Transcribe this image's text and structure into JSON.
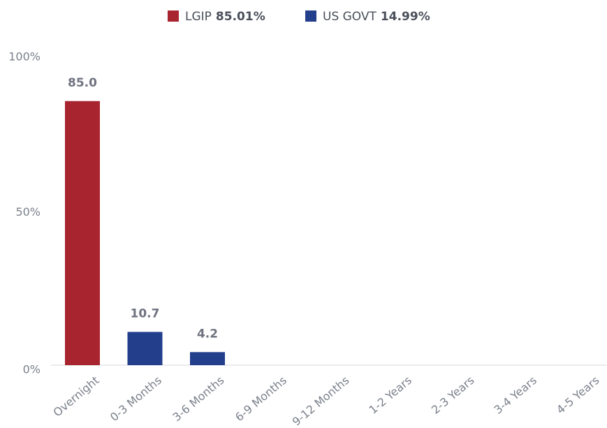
{
  "chart_data": {
    "type": "bar",
    "stacked": true,
    "categories": [
      "Overnight",
      "0-3 Months",
      "3-6 Months",
      "6-9 Months",
      "9-12 Months",
      "1-2 Years",
      "2-3 Years",
      "3-4 Years",
      "4-5 Years"
    ],
    "series": [
      {
        "name": "LGIP",
        "total_label": "85.01%",
        "color": "#a8252f",
        "values": [
          85.0,
          null,
          null,
          null,
          null,
          null,
          null,
          null,
          null
        ],
        "value_labels": [
          "85.0",
          null,
          null,
          null,
          null,
          null,
          null,
          null,
          null
        ]
      },
      {
        "name": "US GOVT",
        "total_label": "14.99%",
        "color": "#233f8c",
        "values": [
          null,
          10.7,
          4.2,
          null,
          null,
          null,
          null,
          null,
          null
        ],
        "value_labels": [
          null,
          "10.7",
          "4.2",
          null,
          null,
          null,
          null,
          null,
          null
        ]
      }
    ],
    "ylim": [
      0,
      100
    ],
    "yticks": [
      {
        "value": 0,
        "label": "0%"
      },
      {
        "value": 50,
        "label": "50%"
      },
      {
        "value": 100,
        "label": "100%"
      }
    ],
    "grid": false
  }
}
